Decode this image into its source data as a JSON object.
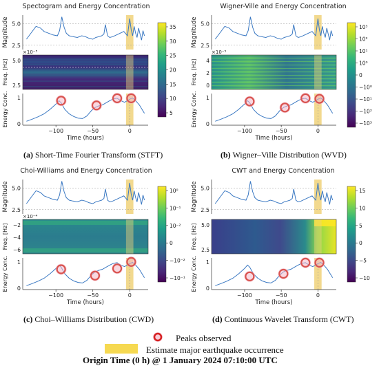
{
  "figure_caption": {
    "peaks_label": "Peaks observed",
    "estimate_label": "Estimate major earthquake occurrence",
    "origin_time": "Origin Time (0 h) @ 1 January 2024 07:10:00 UTC"
  },
  "colors": {
    "line": "#3a78c2",
    "highlight": "#f0d27a",
    "peak_ring": "#d9534f",
    "peak_halo": "#f4b8c8"
  },
  "panels": [
    {
      "id": "stft",
      "title": "Spectogram and Energy Concentration",
      "caption_letter": "(a)",
      "caption_text": " Short-Time Fourier Transform (STFT)",
      "mid_ylabel": "Freq. [Hz]",
      "mid_exponent": "×10⁻⁵",
      "mid_ticks": [
        "5.0",
        "2.5"
      ],
      "colorbar_ticks": [
        "35",
        "30",
        "25",
        "20",
        "15",
        "10",
        "5"
      ],
      "colorscale": "viridis-dark"
    },
    {
      "id": "wvd",
      "title": "Wigner-Ville and Energy Concentration",
      "caption_letter": "(b)",
      "caption_text": " Wigner–Ville Distribution (WVD)",
      "mid_ylabel": "Freq. [Hz]",
      "mid_exponent": "×10⁻⁵",
      "mid_ticks": [
        "4",
        "2",
        "0"
      ],
      "colorbar_ticks": [
        "10³",
        "10²",
        "10¹",
        "10⁰",
        "0",
        "−10⁰",
        "−10¹",
        "−10²",
        "−10³"
      ],
      "colorscale": "wvd"
    },
    {
      "id": "cwd",
      "title": "Choi-Williams and Energy Concentration",
      "caption_letter": "(c)",
      "caption_text": " Choi–Williams Distribution (CWD)",
      "mid_ylabel": "Freq. [Hz]",
      "mid_exponent": "×10⁻⁴",
      "mid_ticks": [
        "−2",
        "−4",
        "−6"
      ],
      "colorbar_ticks": [
        "10⁰",
        "10⁻¹",
        "10⁻²",
        "0",
        "−10⁻²",
        "−10⁻¹"
      ],
      "colorscale": "cwd"
    },
    {
      "id": "cwt",
      "title": "CWT and Energy Concentration",
      "caption_letter": "(d)",
      "caption_text": " Continuous Wavelet Transform (CWT)",
      "mid_ylabel": "Freq. [Hz]",
      "mid_exponent": "",
      "mid_ticks": [
        "5.0",
        "2.5"
      ],
      "colorbar_ticks": [
        "15",
        "10",
        "5",
        "0",
        "−5",
        "−10"
      ],
      "colorscale": "cwt"
    }
  ],
  "chart_data": {
    "type": "line",
    "shared_axes": {
      "xlabel": "Time (hours)",
      "xticks": [
        -100,
        -50,
        0
      ],
      "xlim": [
        -145,
        25
      ],
      "magnitude": {
        "ylabel": "Magnitude",
        "yticks": [
          2.5,
          5.0
        ],
        "ylim": [
          2.0,
          6.0
        ]
      },
      "energy": {
        "ylabel": "Energy Conc.",
        "yticks": [
          0,
          1
        ],
        "ylim": [
          -0.05,
          1.15
        ]
      }
    },
    "highlight_span": [
      -5,
      5
    ],
    "magnitude_series": {
      "x": [
        -140,
        -133,
        -127,
        -121,
        -116,
        -110,
        -104,
        -98,
        -95,
        -92,
        -89,
        -86,
        -82,
        -77,
        -71,
        -65,
        -60,
        -55,
        -50,
        -46,
        -42,
        -38,
        -35,
        -33,
        -30,
        -27,
        -23,
        -18,
        -13,
        -8,
        -3,
        0,
        2,
        4,
        6,
        8,
        10,
        12,
        14,
        16,
        18,
        20
      ],
      "y": [
        3.2,
        4.0,
        4.7,
        4.5,
        4.1,
        3.9,
        3.7,
        3.6,
        4.2,
        5.8,
        4.6,
        3.9,
        3.6,
        3.5,
        3.4,
        3.6,
        3.5,
        3.3,
        3.2,
        3.4,
        3.5,
        3.6,
        3.8,
        4.9,
        3.6,
        3.4,
        3.5,
        3.7,
        3.9,
        4.1,
        3.6,
        5.6,
        4.3,
        3.6,
        4.7,
        3.9,
        3.4,
        4.5,
        3.8,
        3.1,
        4.2,
        3.6
      ]
    },
    "energy_series": {
      "x": [
        -140,
        -132,
        -124,
        -116,
        -108,
        -100,
        -96,
        -93,
        -88,
        -82,
        -76,
        -70,
        -64,
        -58,
        -52,
        -47,
        -42,
        -37,
        -32,
        -27,
        -22,
        -17,
        -12,
        -7,
        -2,
        1,
        4,
        8,
        13,
        20
      ],
      "y": [
        0.1,
        0.18,
        0.27,
        0.38,
        0.55,
        0.75,
        0.88,
        0.8,
        0.55,
        0.38,
        0.28,
        0.22,
        0.2,
        0.3,
        0.5,
        0.62,
        0.68,
        0.72,
        0.8,
        0.88,
        0.95,
        0.97,
        0.88,
        0.82,
        0.9,
        0.95,
        0.98,
        0.88,
        0.72,
        0.4
      ]
    },
    "peaks": [
      {
        "panel": "stft",
        "x": [
          -93,
          -45,
          -17,
          2
        ],
        "y": [
          0.88,
          0.7,
          0.97,
          0.97
        ]
      },
      {
        "panel": "wvd",
        "x": [
          -93,
          -45,
          -17,
          2
        ],
        "y": [
          0.85,
          0.62,
          0.97,
          0.95
        ]
      },
      {
        "panel": "cwd",
        "x": [
          -93,
          -47,
          -17,
          2
        ],
        "y": [
          0.72,
          0.48,
          0.75,
          1.0
        ]
      },
      {
        "panel": "cwt",
        "x": [
          -93,
          -47,
          -17,
          2
        ],
        "y": [
          0.45,
          0.55,
          0.97,
          0.97
        ]
      }
    ]
  }
}
